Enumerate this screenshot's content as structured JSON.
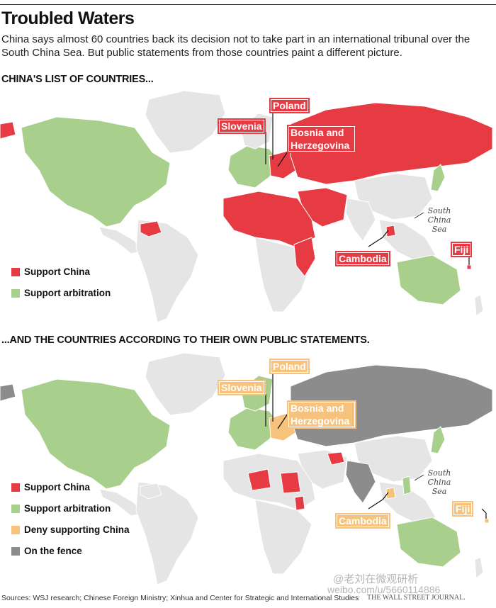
{
  "header": {
    "title": "Troubled Waters",
    "deck": "China says almost 60 countries back its decision not to take part in an international tribunal over the South China Sea. But public statements from those countries paint a different picture."
  },
  "colors": {
    "support_china": "#e63b43",
    "support_arbitration": "#a9cf8c",
    "deny_supporting_china": "#f7c37c",
    "on_the_fence": "#8c8c8c",
    "neutral_land": "#e5e5e5"
  },
  "map1": {
    "heading": "CHINA'S LIST OF COUNTRIES...",
    "legend": [
      {
        "label": "Support China",
        "color": "#e63b43"
      },
      {
        "label": "Support arbitration",
        "color": "#a9cf8c"
      }
    ],
    "callouts": {
      "poland": "Poland",
      "slovenia": "Slovenia",
      "bosnia": "Bosnia and Herzegovina",
      "cambodia": "Cambodia",
      "fiji": "Fiji"
    },
    "sea_label": "South China Sea"
  },
  "map2": {
    "heading": "...AND THE COUNTRIES ACCORDING TO THEIR OWN PUBLIC STATEMENTS.",
    "legend": [
      {
        "label": "Support China",
        "color": "#e63b43"
      },
      {
        "label": "Support arbitration",
        "color": "#a9cf8c"
      },
      {
        "label": "Deny supporting China",
        "color": "#f7c37c"
      },
      {
        "label": "On the fence",
        "color": "#8c8c8c"
      }
    ],
    "callouts": {
      "poland": "Poland",
      "slovenia": "Slovenia",
      "bosnia": "Bosnia and Herzegovina",
      "cambodia": "Cambodia",
      "fiji": "Fiji"
    },
    "sea_label": "South China Sea"
  },
  "footer": {
    "sources": "Sources: WSJ research; Chinese Foreign Ministry; Xinhua and Center for Strategic and International Studies",
    "credit": "THE WALL STREET JOURNAL.",
    "watermark": "@老刘在微观研析",
    "watermark_url": "weibo.com/u/5660114886"
  }
}
